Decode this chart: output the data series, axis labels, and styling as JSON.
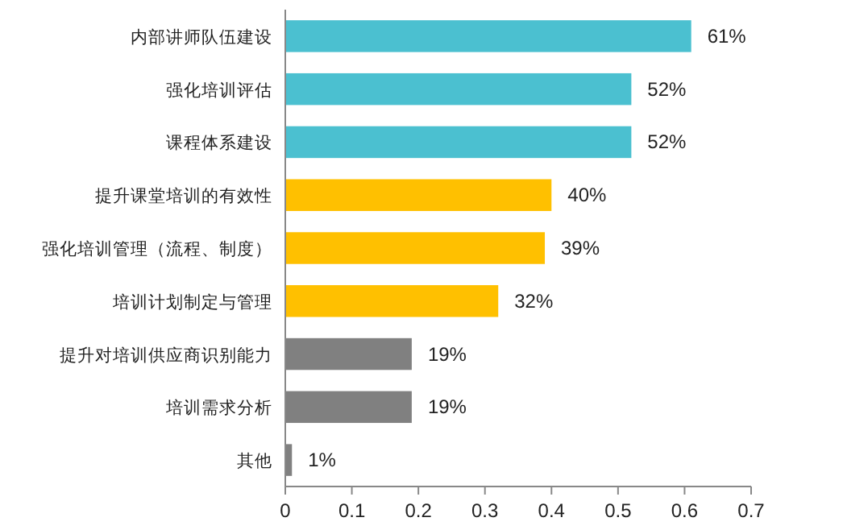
{
  "chart_data": {
    "type": "bar",
    "orientation": "horizontal",
    "categories": [
      "内部讲师队伍建设",
      "强化培训评估",
      "课程体系建设",
      "提升课堂培训的有效性",
      "强化培训管理（流程、制度）",
      "培训计划制定与管理",
      "提升对培训供应商识别能力",
      "培训需求分析",
      "其他"
    ],
    "values": [
      0.61,
      0.52,
      0.52,
      0.4,
      0.39,
      0.32,
      0.19,
      0.19,
      0.01
    ],
    "colors": [
      "#4bc0d0",
      "#4bc0d0",
      "#4bc0d0",
      "#ffc000",
      "#ffc000",
      "#ffc000",
      "#808080",
      "#808080",
      "#808080"
    ],
    "value_labels": [
      "61%",
      "52%",
      "52%",
      "40%",
      "39%",
      "32%",
      "19%",
      "19%",
      "1%"
    ],
    "xlim": [
      0,
      0.7
    ],
    "xticks": [
      0,
      0.1,
      0.2,
      0.3,
      0.4,
      0.5,
      0.6,
      0.7
    ],
    "grid": false
  }
}
